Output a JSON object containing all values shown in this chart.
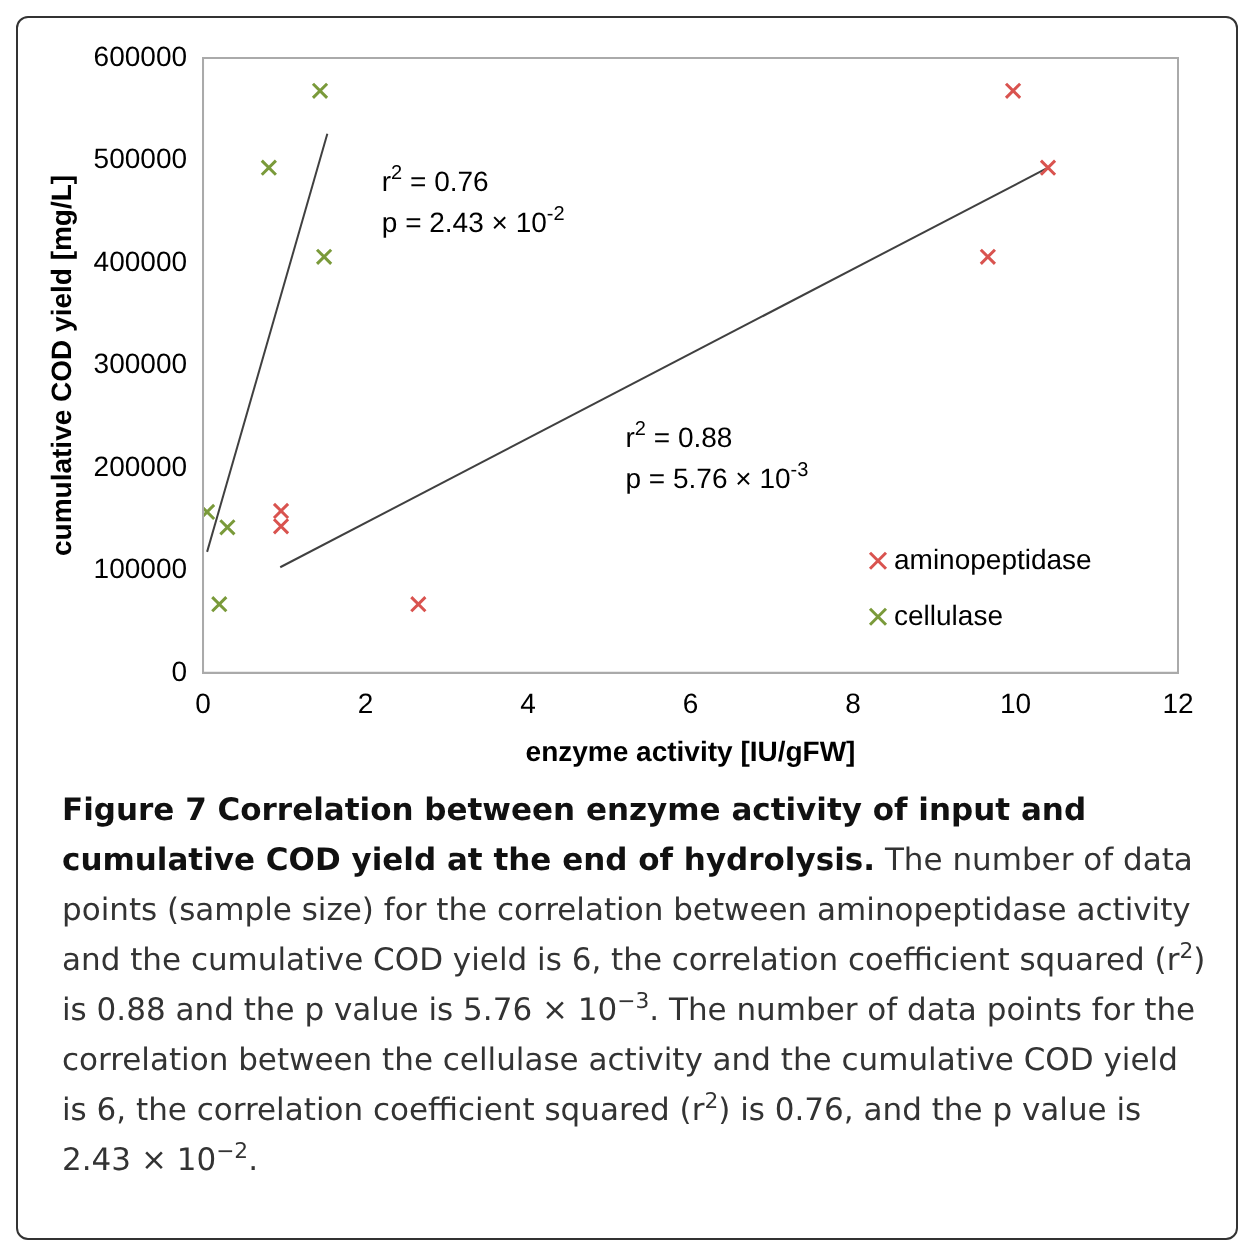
{
  "chart_data": {
    "type": "scatter",
    "title": "Figure 7 Correlation between enzyme activity of input and cumulative COD yield at the end of hydrolysis.",
    "xlabel": "enzyme activity [IU/gFW]",
    "ylabel": "cumulative COD yield [mg/L]",
    "xlim": [
      0,
      12
    ],
    "xticks": [
      0,
      2,
      4,
      6,
      8,
      10,
      12
    ],
    "ylim": [
      0,
      600000
    ],
    "yticks": [
      0,
      100000,
      200000,
      300000,
      400000,
      500000,
      600000
    ],
    "grid": false,
    "legend": "bottom right",
    "marker": "cross",
    "series": [
      {
        "name": "aminopeptidase",
        "color": "#d9534f",
        "x": [
          0.96,
          0.96,
          2.65,
          9.66,
          9.97,
          10.4
        ],
        "values": [
          158000,
          143000,
          67000,
          406000,
          568000,
          493000
        ]
      },
      {
        "name": "cellulase",
        "color": "#7a9a3a",
        "x": [
          0.05,
          0.2,
          0.3,
          0.81,
          1.44,
          1.49
        ],
        "values": [
          157000,
          67000,
          142000,
          493000,
          568000,
          406000
        ]
      },
      {
        "type": "line",
        "marker": "none",
        "color": "#404040",
        "x": [
          0.95,
          10.4
        ],
        "values": [
          103000,
          493000
        ]
      },
      {
        "type": "line",
        "marker": "none",
        "color": "#404040",
        "x": [
          0.05,
          1.53
        ],
        "values": [
          118000,
          526000
        ]
      }
    ],
    "annotations": [
      "r$^{2}$ = 0.76",
      "p = 2.43 × 10$^{-2}$",
      "r$^{2}$ = 0.88",
      "p = 5.76 × 10$^{-3}$",
      "The number of data points (sample size) for the correlation between aminopeptidase activity and the cumulative COD yield is 6, the correlation coefficient squared (r$^{2}$) is 0.88 and the p value is 5.76 × 10$^{−3}$. The number of data points for the correlation between the cellulase activity and the cumulative COD yield is 6, the correlation coefficient squared (r$^{2}$) is 0.76, and the p value is 2.43 × 10$^{−2}$."
    ]
  }
}
